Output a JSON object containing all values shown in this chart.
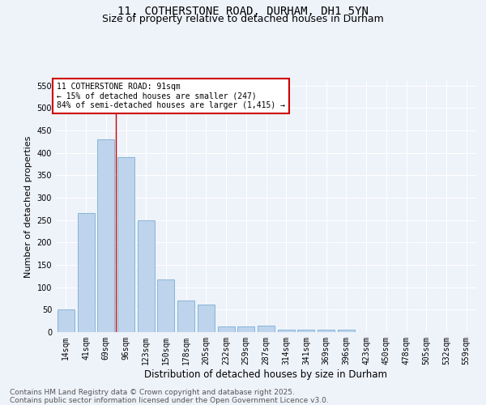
{
  "title": "11, COTHERSTONE ROAD, DURHAM, DH1 5YN",
  "subtitle": "Size of property relative to detached houses in Durham",
  "xlabel": "Distribution of detached houses by size in Durham",
  "ylabel": "Number of detached properties",
  "categories": [
    "14sqm",
    "41sqm",
    "69sqm",
    "96sqm",
    "123sqm",
    "150sqm",
    "178sqm",
    "205sqm",
    "232sqm",
    "259sqm",
    "287sqm",
    "314sqm",
    "341sqm",
    "369sqm",
    "396sqm",
    "423sqm",
    "450sqm",
    "478sqm",
    "505sqm",
    "532sqm",
    "559sqm"
  ],
  "values": [
    50,
    265,
    430,
    390,
    250,
    117,
    70,
    62,
    13,
    13,
    14,
    6,
    5,
    5,
    5,
    0,
    0,
    0,
    0,
    0,
    0
  ],
  "bar_color": "#bdd4ec",
  "bar_edge_color": "#7aaed4",
  "vline_color": "#cc0000",
  "vline_x_index": 2.5,
  "annotation_text": "11 COTHERSTONE ROAD: 91sqm\n← 15% of detached houses are smaller (247)\n84% of semi-detached houses are larger (1,415) →",
  "annotation_box_color": "#ffffff",
  "annotation_box_edge_color": "#cc0000",
  "ylim": [
    0,
    560
  ],
  "yticks": [
    0,
    50,
    100,
    150,
    200,
    250,
    300,
    350,
    400,
    450,
    500,
    550
  ],
  "background_color": "#eef2f9",
  "grid_color": "#ffffff",
  "footer_line1": "Contains HM Land Registry data © Crown copyright and database right 2025.",
  "footer_line2": "Contains public sector information licensed under the Open Government Licence v3.0.",
  "title_fontsize": 10,
  "subtitle_fontsize": 9,
  "ylabel_fontsize": 8,
  "xlabel_fontsize": 8.5,
  "tick_fontsize": 7,
  "annotation_fontsize": 7,
  "footer_fontsize": 6.5
}
